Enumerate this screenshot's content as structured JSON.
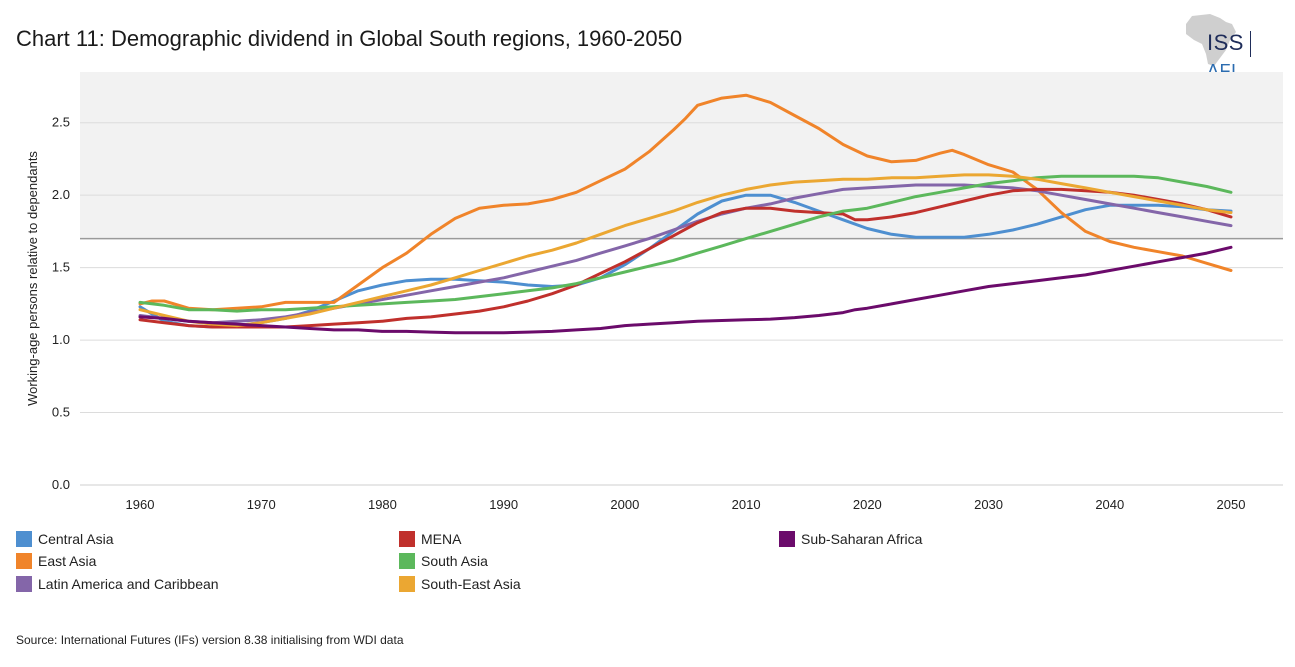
{
  "title": "Chart 11: Demographic dividend in Global South regions, 1960-2050",
  "logo": {
    "primary": "ISS",
    "secondary": "AFI"
  },
  "source": "Source: International Futures (IFs) version 8.38 initialising from WDI data",
  "chart_data": {
    "type": "line",
    "title": "Chart 11: Demographic dividend in Global South regions, 1960-2050",
    "xlabel": "",
    "ylabel": "Working-age persons relative to dependants",
    "xlim": [
      1960,
      2050
    ],
    "ylim": [
      0,
      2.85
    ],
    "x_ticks": [
      "1960",
      "1970",
      "1980",
      "1990",
      "2000",
      "2010",
      "2020",
      "2030",
      "2040",
      "2050"
    ],
    "y_ticks": [
      "0.0",
      "0.5",
      "1.0",
      "1.5",
      "2.0",
      "2.5"
    ],
    "reference_line": 1.7,
    "shaded_band_above": 1.7,
    "grid": true,
    "legend_position": "bottom",
    "series": [
      {
        "name": "Central Asia",
        "color": "#4e8fd0",
        "x": [
          1960,
          1962,
          1964,
          1966,
          1968,
          1970,
          1972,
          1974,
          1976,
          1978,
          1980,
          1982,
          1984,
          1986,
          1988,
          1990,
          1992,
          1994,
          1996,
          1998,
          2000,
          2002,
          2004,
          2006,
          2008,
          2010,
          2012,
          2014,
          2016,
          2018,
          2020,
          2022,
          2024,
          2026,
          2028,
          2030,
          2032,
          2034,
          2036,
          2038,
          2040,
          2042,
          2044,
          2046,
          2048,
          2050
        ],
        "values": [
          1.23,
          1.13,
          1.1,
          1.09,
          1.1,
          1.12,
          1.15,
          1.2,
          1.27,
          1.34,
          1.38,
          1.41,
          1.42,
          1.42,
          1.41,
          1.4,
          1.38,
          1.37,
          1.38,
          1.43,
          1.52,
          1.63,
          1.75,
          1.87,
          1.96,
          2.0,
          2.0,
          1.95,
          1.89,
          1.83,
          1.77,
          1.73,
          1.71,
          1.71,
          1.71,
          1.73,
          1.76,
          1.8,
          1.85,
          1.9,
          1.93,
          1.93,
          1.93,
          1.92,
          1.9,
          1.89
        ]
      },
      {
        "name": "East Asia",
        "color": "#f0842a",
        "x": [
          1960,
          1961,
          1962,
          1964,
          1966,
          1968,
          1970,
          1972,
          1974,
          1976,
          1978,
          1980,
          1982,
          1984,
          1986,
          1988,
          1990,
          1992,
          1994,
          1996,
          1998,
          2000,
          2002,
          2004,
          2005,
          2006,
          2008,
          2010,
          2012,
          2014,
          2016,
          2018,
          2020,
          2022,
          2024,
          2026,
          2027,
          2028,
          2030,
          2032,
          2034,
          2036,
          2038,
          2040,
          2042,
          2044,
          2046,
          2048,
          2050
        ],
        "values": [
          1.25,
          1.27,
          1.27,
          1.22,
          1.21,
          1.22,
          1.23,
          1.26,
          1.26,
          1.26,
          1.38,
          1.5,
          1.6,
          1.73,
          1.84,
          1.91,
          1.93,
          1.94,
          1.97,
          2.02,
          2.1,
          2.18,
          2.3,
          2.45,
          2.53,
          2.62,
          2.67,
          2.69,
          2.64,
          2.55,
          2.46,
          2.35,
          2.27,
          2.23,
          2.24,
          2.29,
          2.31,
          2.28,
          2.21,
          2.16,
          2.04,
          1.88,
          1.75,
          1.68,
          1.64,
          1.61,
          1.58,
          1.53,
          1.48
        ]
      },
      {
        "name": "Latin America and Caribbean",
        "color": "#8466a9",
        "x": [
          1960,
          1962,
          1964,
          1966,
          1968,
          1970,
          1972,
          1974,
          1976,
          1978,
          1980,
          1982,
          1984,
          1986,
          1988,
          1990,
          1992,
          1994,
          1996,
          1998,
          2000,
          2002,
          2004,
          2006,
          2008,
          2010,
          2012,
          2014,
          2016,
          2018,
          2020,
          2022,
          2024,
          2026,
          2028,
          2030,
          2032,
          2034,
          2036,
          2038,
          2040,
          2042,
          2044,
          2046,
          2048,
          2050
        ],
        "values": [
          1.17,
          1.15,
          1.13,
          1.12,
          1.13,
          1.14,
          1.16,
          1.19,
          1.22,
          1.25,
          1.28,
          1.31,
          1.34,
          1.37,
          1.4,
          1.43,
          1.47,
          1.51,
          1.55,
          1.6,
          1.65,
          1.7,
          1.76,
          1.82,
          1.87,
          1.91,
          1.94,
          1.98,
          2.01,
          2.04,
          2.05,
          2.06,
          2.07,
          2.07,
          2.07,
          2.06,
          2.05,
          2.03,
          2.0,
          1.97,
          1.94,
          1.91,
          1.88,
          1.85,
          1.82,
          1.79
        ]
      },
      {
        "name": "MENA",
        "color": "#c0302c",
        "x": [
          1960,
          1962,
          1964,
          1966,
          1968,
          1970,
          1972,
          1974,
          1976,
          1978,
          1980,
          1982,
          1984,
          1986,
          1988,
          1990,
          1992,
          1994,
          1996,
          1998,
          2000,
          2002,
          2004,
          2006,
          2008,
          2010,
          2012,
          2014,
          2016,
          2018,
          2019,
          2020,
          2022,
          2024,
          2026,
          2028,
          2030,
          2032,
          2034,
          2036,
          2038,
          2040,
          2042,
          2044,
          2046,
          2048,
          2050
        ],
        "values": [
          1.14,
          1.12,
          1.1,
          1.09,
          1.09,
          1.09,
          1.09,
          1.1,
          1.11,
          1.12,
          1.13,
          1.15,
          1.16,
          1.18,
          1.2,
          1.23,
          1.27,
          1.32,
          1.38,
          1.46,
          1.54,
          1.63,
          1.72,
          1.81,
          1.88,
          1.91,
          1.91,
          1.89,
          1.88,
          1.87,
          1.83,
          1.83,
          1.85,
          1.88,
          1.92,
          1.96,
          2.0,
          2.03,
          2.04,
          2.04,
          2.03,
          2.02,
          2.0,
          1.97,
          1.94,
          1.9,
          1.85
        ]
      },
      {
        "name": "South Asia",
        "color": "#5cb85c",
        "x": [
          1960,
          1962,
          1964,
          1966,
          1968,
          1970,
          1972,
          1974,
          1976,
          1978,
          1980,
          1982,
          1984,
          1986,
          1988,
          1990,
          1992,
          1994,
          1996,
          1998,
          2000,
          2002,
          2004,
          2006,
          2008,
          2010,
          2012,
          2014,
          2016,
          2018,
          2019,
          2020,
          2022,
          2024,
          2026,
          2028,
          2030,
          2032,
          2034,
          2036,
          2038,
          2040,
          2042,
          2044,
          2046,
          2048,
          2050
        ],
        "values": [
          1.26,
          1.24,
          1.21,
          1.21,
          1.2,
          1.21,
          1.21,
          1.22,
          1.23,
          1.24,
          1.25,
          1.26,
          1.27,
          1.28,
          1.3,
          1.32,
          1.34,
          1.36,
          1.39,
          1.43,
          1.47,
          1.51,
          1.55,
          1.6,
          1.65,
          1.7,
          1.75,
          1.8,
          1.85,
          1.89,
          1.9,
          1.91,
          1.95,
          1.99,
          2.02,
          2.05,
          2.08,
          2.1,
          2.12,
          2.13,
          2.13,
          2.13,
          2.13,
          2.12,
          2.09,
          2.06,
          2.02
        ]
      },
      {
        "name": "South-East Asia",
        "color": "#eba732",
        "x": [
          1960,
          1962,
          1964,
          1966,
          1968,
          1970,
          1972,
          1974,
          1976,
          1978,
          1980,
          1982,
          1984,
          1986,
          1988,
          1990,
          1992,
          1994,
          1996,
          1998,
          2000,
          2002,
          2004,
          2006,
          2008,
          2010,
          2012,
          2014,
          2016,
          2018,
          2020,
          2022,
          2024,
          2026,
          2028,
          2030,
          2032,
          2034,
          2036,
          2038,
          2040,
          2042,
          2044,
          2046,
          2048,
          2050
        ],
        "values": [
          1.21,
          1.17,
          1.13,
          1.11,
          1.1,
          1.12,
          1.15,
          1.18,
          1.22,
          1.26,
          1.3,
          1.34,
          1.38,
          1.43,
          1.48,
          1.53,
          1.58,
          1.62,
          1.67,
          1.73,
          1.79,
          1.84,
          1.89,
          1.95,
          2.0,
          2.04,
          2.07,
          2.09,
          2.1,
          2.11,
          2.11,
          2.12,
          2.12,
          2.13,
          2.14,
          2.14,
          2.13,
          2.11,
          2.08,
          2.05,
          2.02,
          1.99,
          1.96,
          1.93,
          1.9,
          1.88
        ]
      },
      {
        "name": "Sub-Saharan Africa",
        "color": "#6b0b6b",
        "x": [
          1960,
          1962,
          1964,
          1966,
          1968,
          1970,
          1972,
          1974,
          1976,
          1978,
          1980,
          1982,
          1984,
          1986,
          1988,
          1990,
          1992,
          1994,
          1996,
          1998,
          2000,
          2002,
          2004,
          2006,
          2008,
          2010,
          2012,
          2014,
          2016,
          2018,
          2019,
          2020,
          2022,
          2024,
          2026,
          2028,
          2030,
          2032,
          2034,
          2036,
          2038,
          2040,
          2042,
          2044,
          2046,
          2048,
          2050
        ],
        "values": [
          1.16,
          1.15,
          1.13,
          1.12,
          1.11,
          1.1,
          1.09,
          1.08,
          1.07,
          1.07,
          1.06,
          1.06,
          1.055,
          1.05,
          1.05,
          1.05,
          1.055,
          1.06,
          1.07,
          1.08,
          1.1,
          1.11,
          1.12,
          1.13,
          1.135,
          1.14,
          1.145,
          1.155,
          1.17,
          1.19,
          1.21,
          1.22,
          1.25,
          1.28,
          1.31,
          1.34,
          1.37,
          1.39,
          1.41,
          1.43,
          1.45,
          1.48,
          1.51,
          1.54,
          1.57,
          1.6,
          1.64
        ]
      }
    ]
  },
  "legend_columns": [
    [
      "Central Asia",
      "East Asia",
      "Latin America and Caribbean"
    ],
    [
      "MENA",
      "South Asia",
      "South-East Asia"
    ],
    [
      "Sub-Saharan Africa"
    ]
  ]
}
